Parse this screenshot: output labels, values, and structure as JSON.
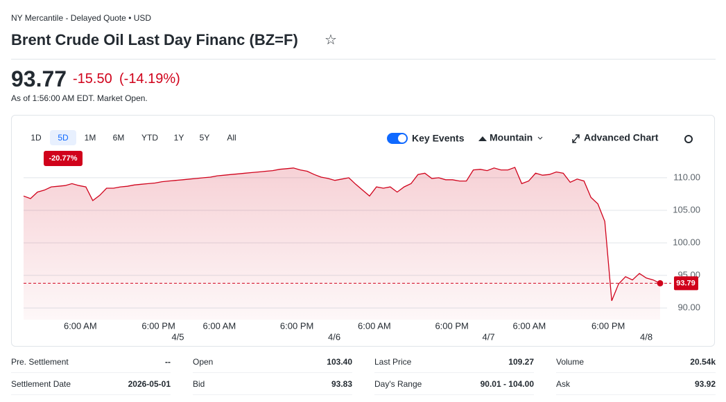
{
  "header": {
    "exchange": "NY Mercantile - Delayed Quote • USD",
    "title": "Brent Crude Oil Last Day Financ (BZ=F)",
    "price": "93.77",
    "change": "-15.50",
    "change_pct": "(-14.19%)",
    "as_of": "As of 1:56:00 AM EDT. Market Open."
  },
  "toolbar": {
    "periods": [
      "1D",
      "5D",
      "1M",
      "6M",
      "YTD",
      "1Y",
      "5Y",
      "All"
    ],
    "active_period": 1,
    "period_change": "-20.77%",
    "key_events": "Key Events",
    "chart_style": "Mountain",
    "advanced": "Advanced Chart"
  },
  "chart_data": {
    "type": "area",
    "color": "#d0021b",
    "values": [
      107.2,
      106.8,
      107.8,
      108.1,
      108.6,
      108.7,
      108.8,
      109.1,
      108.8,
      108.6,
      106.5,
      107.3,
      108.4,
      108.4,
      108.6,
      108.7,
      108.9,
      109.0,
      109.1,
      109.2,
      109.4,
      109.5,
      109.6,
      109.7,
      109.8,
      109.9,
      110.0,
      110.1,
      110.3,
      110.4,
      110.5,
      110.6,
      110.7,
      110.8,
      110.9,
      111.0,
      111.1,
      111.3,
      111.4,
      111.5,
      111.2,
      111.0,
      110.5,
      110.1,
      109.9,
      109.6,
      109.8,
      110.0,
      109.0,
      108.1,
      107.2,
      108.6,
      108.4,
      108.6,
      107.8,
      108.6,
      109.1,
      110.5,
      110.7,
      109.9,
      110.0,
      109.7,
      109.7,
      109.5,
      109.5,
      111.2,
      111.3,
      111.1,
      111.5,
      111.2,
      111.2,
      111.6,
      109.1,
      109.5,
      110.7,
      110.4,
      110.5,
      110.9,
      110.7,
      109.3,
      109.8,
      109.5,
      107.0,
      106.0,
      103.3,
      91.1,
      93.7,
      94.8,
      94.3,
      95.3,
      94.6,
      94.3,
      93.79
    ],
    "xlim": [
      0,
      92
    ],
    "xticks": [
      {
        "value": 8.2,
        "label": "6:00 AM"
      },
      {
        "value": 19.5,
        "label": "6:00 PM"
      },
      {
        "value": 28.3,
        "label": "6:00 AM"
      },
      {
        "value": 39.5,
        "label": "6:00 PM"
      },
      {
        "value": 50.7,
        "label": "6:00 AM"
      },
      {
        "value": 61.9,
        "label": "6:00 PM"
      },
      {
        "value": 73.1,
        "label": "6:00 AM"
      },
      {
        "value": 84.5,
        "label": "6:00 PM"
      }
    ],
    "date_ticks": [
      {
        "value": 22.3,
        "label": "4/5"
      },
      {
        "value": 44.9,
        "label": "4/6"
      },
      {
        "value": 67.2,
        "label": "4/7"
      },
      {
        "value": 90.0,
        "label": "4/8"
      }
    ],
    "ylim": [
      88.2,
      111.8
    ],
    "yticks": [
      {
        "value": 90,
        "label": "90.00"
      },
      {
        "value": 95,
        "label": "95.00"
      },
      {
        "value": 100,
        "label": "100.00"
      },
      {
        "value": 105,
        "label": "105.00"
      },
      {
        "value": 110,
        "label": "110.00"
      }
    ],
    "grid": true
  },
  "stats": [
    [
      {
        "label": "Pre. Settlement",
        "value": "--"
      },
      {
        "label": "Open",
        "value": "103.40"
      },
      {
        "label": "Last Price",
        "value": "109.27"
      },
      {
        "label": "Volume",
        "value": "20.54k"
      }
    ],
    [
      {
        "label": "Settlement Date",
        "value": "2026-05-01"
      },
      {
        "label": "Bid",
        "value": "93.83"
      },
      {
        "label": "Day's Range",
        "value": "90.01 - 104.00"
      },
      {
        "label": "Ask",
        "value": "93.92"
      }
    ]
  ]
}
